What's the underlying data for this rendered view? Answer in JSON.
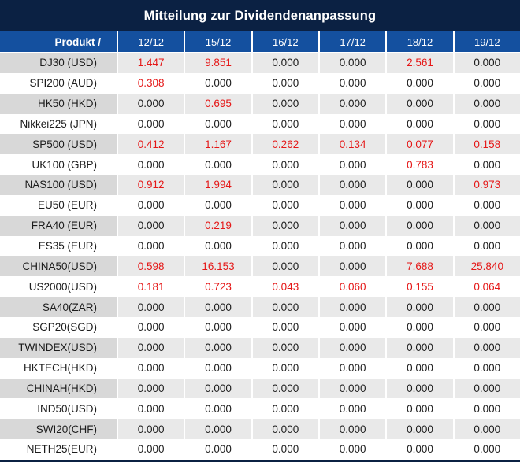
{
  "title": "Mitteilung zur Dividendenanpassung",
  "table": {
    "product_header": "Produkt /",
    "date_columns": [
      "12/12",
      "15/12",
      "16/12",
      "17/12",
      "18/12",
      "19/12"
    ],
    "rows": [
      {
        "product": "DJ30 (USD)",
        "values": [
          "1.447",
          "9.851",
          "0.000",
          "0.000",
          "2.561",
          "0.000"
        ]
      },
      {
        "product": "SPI200 (AUD)",
        "values": [
          "0.308",
          "0.000",
          "0.000",
          "0.000",
          "0.000",
          "0.000"
        ]
      },
      {
        "product": "HK50 (HKD)",
        "values": [
          "0.000",
          "0.695",
          "0.000",
          "0.000",
          "0.000",
          "0.000"
        ]
      },
      {
        "product": "Nikkei225 (JPN)",
        "values": [
          "0.000",
          "0.000",
          "0.000",
          "0.000",
          "0.000",
          "0.000"
        ]
      },
      {
        "product": "SP500 (USD)",
        "values": [
          "0.412",
          "1.167",
          "0.262",
          "0.134",
          "0.077",
          "0.158"
        ]
      },
      {
        "product": "UK100 (GBP)",
        "values": [
          "0.000",
          "0.000",
          "0.000",
          "0.000",
          "0.783",
          "0.000"
        ]
      },
      {
        "product": "NAS100 (USD)",
        "values": [
          "0.912",
          "1.994",
          "0.000",
          "0.000",
          "0.000",
          "0.973"
        ]
      },
      {
        "product": "EU50 (EUR)",
        "values": [
          "0.000",
          "0.000",
          "0.000",
          "0.000",
          "0.000",
          "0.000"
        ]
      },
      {
        "product": "FRA40 (EUR)",
        "values": [
          "0.000",
          "0.219",
          "0.000",
          "0.000",
          "0.000",
          "0.000"
        ]
      },
      {
        "product": "ES35 (EUR)",
        "values": [
          "0.000",
          "0.000",
          "0.000",
          "0.000",
          "0.000",
          "0.000"
        ]
      },
      {
        "product": "CHINA50(USD)",
        "values": [
          "0.598",
          "16.153",
          "0.000",
          "0.000",
          "7.688",
          "25.840"
        ]
      },
      {
        "product": "US2000(USD)",
        "values": [
          "0.181",
          "0.723",
          "0.043",
          "0.060",
          "0.155",
          "0.064"
        ]
      },
      {
        "product": "SA40(ZAR)",
        "values": [
          "0.000",
          "0.000",
          "0.000",
          "0.000",
          "0.000",
          "0.000"
        ]
      },
      {
        "product": "SGP20(SGD)",
        "values": [
          "0.000",
          "0.000",
          "0.000",
          "0.000",
          "0.000",
          "0.000"
        ]
      },
      {
        "product": "TWINDEX(USD)",
        "values": [
          "0.000",
          "0.000",
          "0.000",
          "0.000",
          "0.000",
          "0.000"
        ]
      },
      {
        "product": "HKTECH(HKD)",
        "values": [
          "0.000",
          "0.000",
          "0.000",
          "0.000",
          "0.000",
          "0.000"
        ]
      },
      {
        "product": "CHINAH(HKD)",
        "values": [
          "0.000",
          "0.000",
          "0.000",
          "0.000",
          "0.000",
          "0.000"
        ]
      },
      {
        "product": "IND50(USD)",
        "values": [
          "0.000",
          "0.000",
          "0.000",
          "0.000",
          "0.000",
          "0.000"
        ]
      },
      {
        "product": "SWI20(CHF)",
        "values": [
          "0.000",
          "0.000",
          "0.000",
          "0.000",
          "0.000",
          "0.000"
        ]
      },
      {
        "product": "NETH25(EUR)",
        "values": [
          "0.000",
          "0.000",
          "0.000",
          "0.000",
          "0.000",
          "0.000"
        ]
      }
    ],
    "zero_value": "0.000"
  },
  "colors": {
    "title_bar_navy": "#0b2143",
    "header_blue": "#14509f",
    "row_gray_product": "#d8d8d8",
    "row_gray_value": "#e9e9e9",
    "nonzero_value_red": "#e51717",
    "value_text_dark": "#1c1c1c",
    "header_text_white": "#ffffff"
  }
}
